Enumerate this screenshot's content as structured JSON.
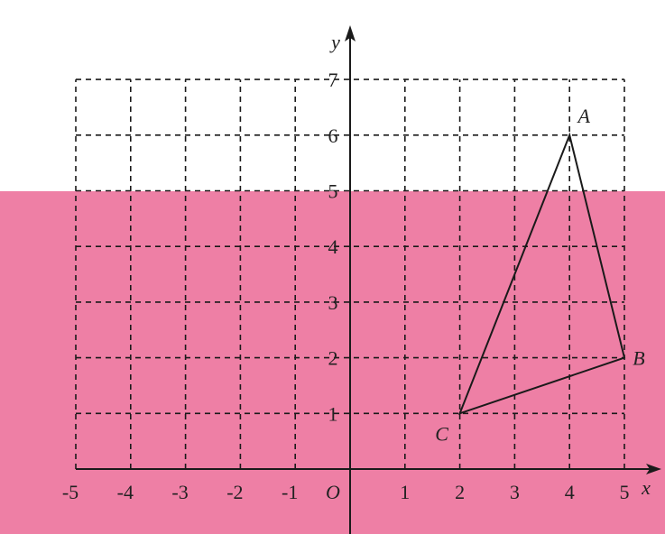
{
  "colors": {
    "band": "#ee7fa5",
    "ink": "#1a1a1a"
  },
  "band_starts_at_y": 5,
  "axes": {
    "x_label": "x",
    "y_label": "y",
    "origin_label": "O",
    "x_ticks": [
      "-5",
      "-4",
      "-3",
      "-2",
      "-1",
      "1",
      "2",
      "3",
      "4",
      "5"
    ],
    "y_ticks": [
      "1",
      "2",
      "3",
      "4",
      "5",
      "6",
      "7"
    ],
    "xlim": [
      -5,
      5
    ],
    "ylim": [
      0,
      7
    ],
    "grid": "dashed"
  },
  "triangle": {
    "points": [
      {
        "label": "A",
        "x": 4,
        "y": 6
      },
      {
        "label": "B",
        "x": 5,
        "y": 2
      },
      {
        "label": "C",
        "x": 2,
        "y": 1
      }
    ]
  }
}
